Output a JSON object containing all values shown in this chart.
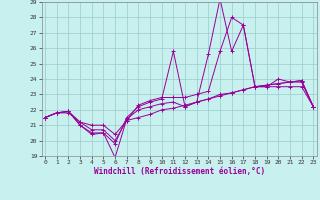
{
  "title": "",
  "xlabel": "Windchill (Refroidissement éolien,°C)",
  "xlim": [
    0,
    23
  ],
  "ylim": [
    19,
    29
  ],
  "yticks": [
    19,
    20,
    21,
    22,
    23,
    24,
    25,
    26,
    27,
    28,
    29
  ],
  "xticks": [
    0,
    1,
    2,
    3,
    4,
    5,
    6,
    7,
    8,
    9,
    10,
    11,
    12,
    13,
    14,
    15,
    16,
    17,
    18,
    19,
    20,
    21,
    22,
    23
  ],
  "bg_color": "#c8f0ee",
  "line_color": "#990099",
  "grid_color": "#99cccc",
  "series": [
    [
      21.5,
      21.8,
      21.9,
      21.0,
      20.4,
      20.5,
      18.9,
      21.4,
      22.0,
      22.2,
      22.4,
      22.5,
      22.2,
      22.5,
      22.7,
      23.0,
      23.1,
      23.3,
      23.5,
      23.6,
      23.7,
      23.8,
      23.9,
      22.2
    ],
    [
      21.5,
      21.8,
      21.9,
      21.0,
      20.5,
      20.5,
      19.8,
      21.5,
      22.2,
      22.5,
      22.7,
      25.8,
      22.2,
      22.5,
      25.6,
      29.2,
      25.8,
      27.5,
      23.5,
      23.5,
      24.0,
      23.8,
      23.8,
      22.2
    ],
    [
      21.5,
      21.8,
      21.9,
      21.2,
      20.7,
      20.7,
      20.0,
      21.3,
      22.3,
      22.6,
      22.8,
      22.8,
      22.8,
      23.0,
      23.2,
      25.8,
      28.0,
      27.5,
      23.5,
      23.5,
      23.5,
      23.5,
      23.5,
      22.2
    ],
    [
      21.5,
      21.8,
      21.8,
      21.2,
      21.0,
      21.0,
      20.4,
      21.3,
      21.5,
      21.7,
      22.0,
      22.1,
      22.3,
      22.5,
      22.7,
      22.9,
      23.1,
      23.3,
      23.5,
      23.6,
      23.7,
      23.8,
      23.9,
      22.2
    ]
  ]
}
